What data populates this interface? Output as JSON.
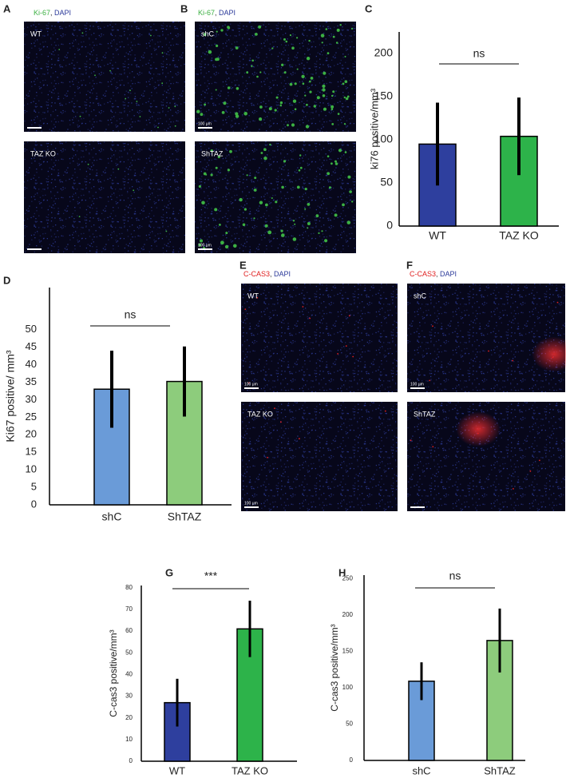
{
  "image_panels": [
    {
      "panel_label": "A",
      "stain": [
        {
          "text": "Ki-67",
          "color": "#3cb043"
        },
        {
          "text": ", ",
          "color": "#333333"
        },
        {
          "text": "DAPI",
          "color": "#2b3a9a"
        }
      ],
      "images": [
        {
          "label": "WT"
        },
        {
          "label": "TAZ KO"
        }
      ]
    },
    {
      "panel_label": "B",
      "stain": [
        {
          "text": "Ki-67",
          "color": "#3cb043"
        },
        {
          "text": ", ",
          "color": "#333333"
        },
        {
          "text": "DAPI",
          "color": "#2b3a9a"
        }
      ],
      "images": [
        {
          "label": "shC",
          "scale_label": "100 μm"
        },
        {
          "label": "ShTAZ",
          "scale_label": "100 μm"
        }
      ]
    },
    {
      "panel_label": "E",
      "stain": [
        {
          "text": "C-CAS3",
          "color": "#e02020"
        },
        {
          "text": ", ",
          "color": "#333333"
        },
        {
          "text": "DAPI",
          "color": "#2b3a9a"
        }
      ],
      "images": [
        {
          "label": "WT",
          "scale_label": "100 μm"
        },
        {
          "label": "TAZ KO",
          "scale_label": "100 μm"
        }
      ]
    },
    {
      "panel_label": "F",
      "stain": [
        {
          "text": "C-CAS3",
          "color": "#e02020"
        },
        {
          "text": ", ",
          "color": "#333333"
        },
        {
          "text": "DAPI",
          "color": "#2b3a9a"
        }
      ],
      "images": [
        {
          "label": "shC",
          "scale_label": "100 μm"
        },
        {
          "label": "ShTAZ"
        }
      ]
    }
  ],
  "chart_data": [
    {
      "type": "bar",
      "panel_label": "C",
      "ylabel": "ki76 positive/mm³",
      "annotation": "ns",
      "categories": [
        "WT",
        "TAZ KO"
      ],
      "values": [
        95,
        104
      ],
      "errors": [
        48,
        45
      ],
      "colors": [
        "#2e3f9e",
        "#2db34a"
      ],
      "ylim": [
        0,
        225
      ],
      "yticks": [
        0,
        50,
        100,
        150,
        200
      ]
    },
    {
      "type": "bar",
      "panel_label": "D",
      "ylabel": "Ki67 positive/ mm³",
      "annotation": "ns",
      "categories": [
        "shC",
        "ShTAZ"
      ],
      "values": [
        33,
        35.2
      ],
      "errors": [
        11,
        10
      ],
      "colors": [
        "#6a9bd8",
        "#8dcc7c"
      ],
      "ylim": [
        0,
        62
      ],
      "yticks": [
        0,
        5,
        10,
        15,
        20,
        25,
        30,
        35,
        40,
        45,
        50
      ]
    },
    {
      "type": "bar",
      "panel_label": "G",
      "ylabel": "C-cas3 positive/mm³",
      "annotation": "***",
      "categories": [
        "WT",
        "TAZ KO"
      ],
      "values": [
        27,
        61
      ],
      "errors": [
        11,
        13
      ],
      "colors": [
        "#2e3f9e",
        "#2db34a"
      ],
      "ylim": [
        0,
        81
      ],
      "yticks": [
        0,
        10,
        20,
        30,
        40,
        50,
        60,
        70,
        80
      ]
    },
    {
      "type": "bar",
      "panel_label": "H",
      "ylabel": "C-cas3 positive/mm³",
      "annotation": "ns",
      "categories": [
        "shC",
        "ShTAZ"
      ],
      "values": [
        109,
        165
      ],
      "errors": [
        26,
        44
      ],
      "colors": [
        "#6a9bd8",
        "#8dcc7c"
      ],
      "ylim": [
        0,
        255
      ],
      "yticks": [
        0,
        50,
        100,
        150,
        200,
        250
      ]
    }
  ]
}
